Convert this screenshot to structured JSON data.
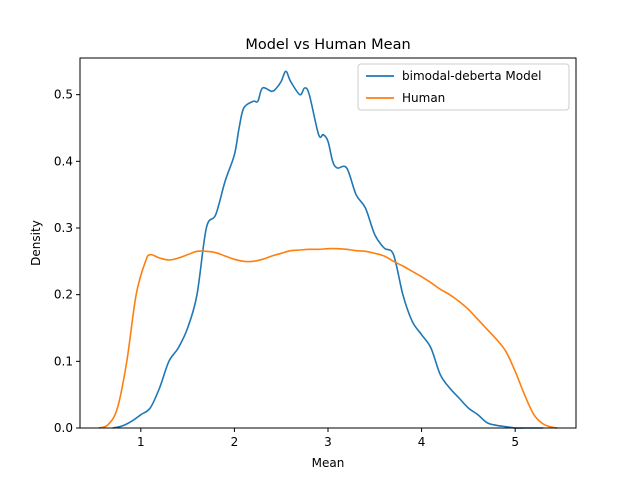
{
  "chart_data": {
    "type": "line",
    "title": "Model vs Human Mean",
    "xlabel": "Mean",
    "ylabel": "Density",
    "xlim": [
      0.35,
      5.65
    ],
    "ylim": [
      0.0,
      0.555
    ],
    "xticks": [
      1,
      2,
      3,
      4,
      5
    ],
    "yticks": [
      0.0,
      0.1,
      0.2,
      0.3,
      0.4,
      0.5
    ],
    "xtick_labels": [
      "1",
      "2",
      "3",
      "4",
      "5"
    ],
    "ytick_labels": [
      "0.0",
      "0.1",
      "0.2",
      "0.3",
      "0.4",
      "0.5"
    ],
    "grid": false,
    "legend_position": "top-right",
    "series": [
      {
        "name": "bimodal-deberta Model",
        "color": "#1f77b4",
        "x": [
          0.7,
          0.8,
          0.9,
          1.0,
          1.1,
          1.2,
          1.3,
          1.4,
          1.5,
          1.6,
          1.7,
          1.8,
          1.9,
          2.0,
          2.05,
          2.1,
          2.2,
          2.25,
          2.3,
          2.4,
          2.45,
          2.5,
          2.55,
          2.6,
          2.7,
          2.75,
          2.8,
          2.9,
          2.95,
          3.0,
          3.05,
          3.1,
          3.2,
          3.3,
          3.4,
          3.5,
          3.6,
          3.7,
          3.8,
          3.9,
          4.0,
          4.1,
          4.2,
          4.3,
          4.4,
          4.5,
          4.6,
          4.7,
          4.8,
          4.9,
          5.0,
          5.1,
          5.2,
          5.3
        ],
        "values": [
          0.0,
          0.003,
          0.01,
          0.02,
          0.03,
          0.06,
          0.1,
          0.12,
          0.15,
          0.2,
          0.3,
          0.32,
          0.37,
          0.41,
          0.45,
          0.48,
          0.49,
          0.49,
          0.51,
          0.505,
          0.51,
          0.52,
          0.535,
          0.52,
          0.5,
          0.51,
          0.5,
          0.44,
          0.44,
          0.43,
          0.4,
          0.39,
          0.39,
          0.35,
          0.33,
          0.29,
          0.27,
          0.26,
          0.2,
          0.16,
          0.14,
          0.12,
          0.08,
          0.06,
          0.045,
          0.03,
          0.02,
          0.008,
          0.004,
          0.002,
          0.0,
          0.0,
          0.0,
          0.0
        ]
      },
      {
        "name": "Human",
        "color": "#ff7f0e",
        "x": [
          0.55,
          0.65,
          0.75,
          0.85,
          0.95,
          1.05,
          1.1,
          1.2,
          1.3,
          1.4,
          1.5,
          1.6,
          1.7,
          1.8,
          1.9,
          2.0,
          2.1,
          2.2,
          2.3,
          2.4,
          2.5,
          2.6,
          2.7,
          2.8,
          2.9,
          3.0,
          3.1,
          3.2,
          3.3,
          3.4,
          3.5,
          3.6,
          3.7,
          3.8,
          3.9,
          4.0,
          4.1,
          4.2,
          4.3,
          4.4,
          4.5,
          4.6,
          4.7,
          4.8,
          4.9,
          5.0,
          5.1,
          5.2,
          5.3,
          5.4,
          5.45
        ],
        "values": [
          0.0,
          0.005,
          0.03,
          0.1,
          0.2,
          0.25,
          0.26,
          0.255,
          0.252,
          0.255,
          0.26,
          0.265,
          0.265,
          0.263,
          0.258,
          0.253,
          0.25,
          0.25,
          0.253,
          0.258,
          0.262,
          0.266,
          0.267,
          0.268,
          0.268,
          0.269,
          0.269,
          0.268,
          0.266,
          0.265,
          0.262,
          0.258,
          0.25,
          0.243,
          0.235,
          0.227,
          0.218,
          0.208,
          0.2,
          0.19,
          0.178,
          0.163,
          0.148,
          0.133,
          0.115,
          0.085,
          0.05,
          0.02,
          0.006,
          0.001,
          0.0
        ]
      }
    ]
  }
}
